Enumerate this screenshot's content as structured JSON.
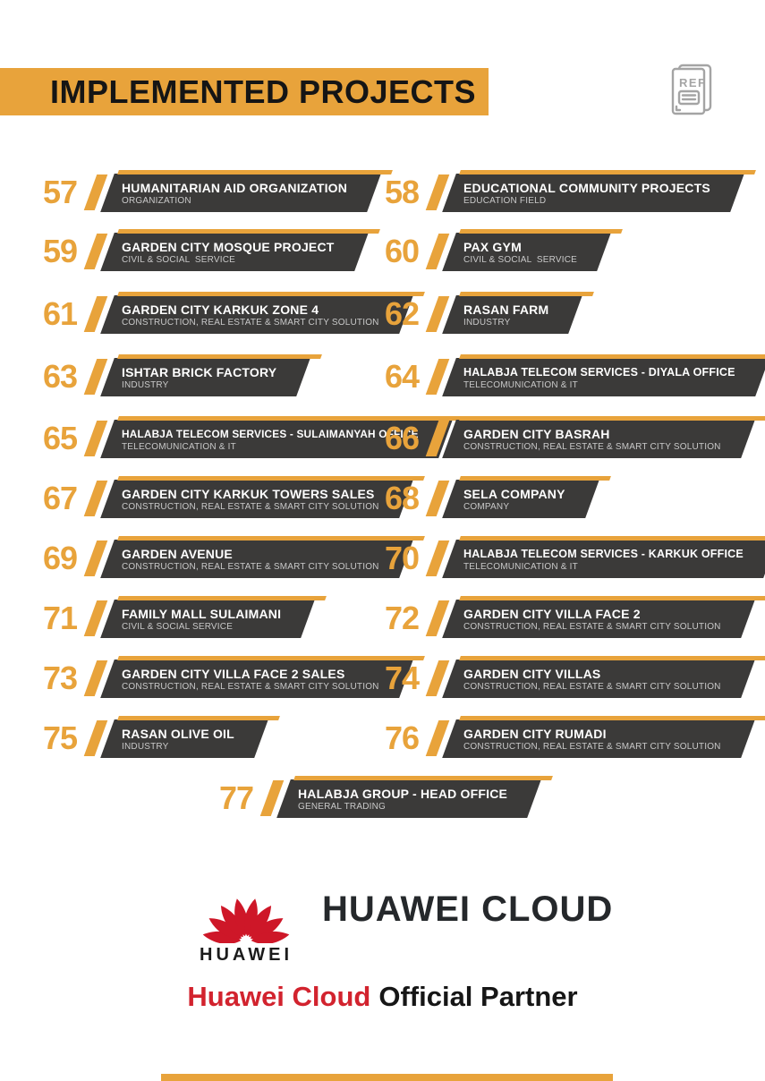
{
  "header": {
    "title": "IMPLEMENTED PROJECTS"
  },
  "ref_icon": {
    "label": "REF"
  },
  "projects": [
    {
      "num": "57",
      "title": "HUMANITARIAN AID ORGANIZATION",
      "category": "ORGANIZATION"
    },
    {
      "num": "58",
      "title": "EDUCATIONAL COMMUNITY PROJECTS",
      "category": "EDUCATION FIELD"
    },
    {
      "num": "59",
      "title": "GARDEN CITY MOSQUE PROJECT",
      "category": "CIVIL & SOCIAL  SERVICE"
    },
    {
      "num": "60",
      "title": "PAX GYM",
      "category": "CIVIL & SOCIAL  SERVICE"
    },
    {
      "num": "61",
      "title": "GARDEN CITY KARKUK ZONE 4",
      "category": "CONSTRUCTION, REAL ESTATE & SMART CITY SOLUTION"
    },
    {
      "num": "62",
      "title": "RASAN FARM",
      "category": "INDUSTRY"
    },
    {
      "num": "63",
      "title": "ISHTAR BRICK FACTORY",
      "category": "INDUSTRY"
    },
    {
      "num": "64",
      "title": "HALABJA TELECOM SERVICES - DIYALA OFFICE",
      "category": "TELECOMUNICATION & IT"
    },
    {
      "num": "65",
      "title": "HALABJA TELECOM SERVICES - SULAIMANYAH OFFICE",
      "category": "TELECOMUNICATION & IT"
    },
    {
      "num": "66",
      "title": "GARDEN CITY BASRAH",
      "category": "CONSTRUCTION, REAL ESTATE & SMART CITY SOLUTION"
    },
    {
      "num": "67",
      "title": "GARDEN CITY KARKUK TOWERS SALES",
      "category": "CONSTRUCTION, REAL ESTATE & SMART CITY SOLUTION"
    },
    {
      "num": "68",
      "title": "SELA COMPANY",
      "category": "COMPANY"
    },
    {
      "num": "69",
      "title": "GARDEN AVENUE",
      "category": "CONSTRUCTION, REAL ESTATE & SMART CITY SOLUTION"
    },
    {
      "num": "70",
      "title": "HALABJA TELECOM SERVICES - KARKUK OFFICE",
      "category": "TELECOMUNICATION & IT"
    },
    {
      "num": "71",
      "title": "FAMILY MALL SULAIMANI",
      "category": "CIVIL & SOCIAL SERVICE"
    },
    {
      "num": "72",
      "title": "GARDEN CITY VILLA FACE 2",
      "category": "CONSTRUCTION, REAL ESTATE & SMART CITY SOLUTION"
    },
    {
      "num": "73",
      "title": "GARDEN CITY VILLA FACE 2 SALES",
      "category": "CONSTRUCTION, REAL ESTATE & SMART CITY SOLUTION"
    },
    {
      "num": "74",
      "title": "GARDEN CITY VILLAS",
      "category": "CONSTRUCTION, REAL ESTATE & SMART CITY SOLUTION"
    },
    {
      "num": "75",
      "title": "RASAN OLIVE OIL",
      "category": "INDUSTRY"
    },
    {
      "num": "76",
      "title": "GARDEN CITY RUMADI",
      "category": "CONSTRUCTION, REAL ESTATE & SMART CITY SOLUTION"
    },
    {
      "num": "77",
      "title": "HALABJA GROUP - HEAD OFFICE",
      "category": "GENERAL TRADING"
    }
  ],
  "footer": {
    "huawei_wordmark": "HUAWEI",
    "cloud_logo_text": "HUAWEI CLOUD",
    "partner_red": "Huawei Cloud",
    "partner_black": "Official Partner"
  },
  "colors": {
    "accent": "#E8A33B",
    "banner_dark": "#3B3A39",
    "huawei_red": "#CE1728"
  }
}
